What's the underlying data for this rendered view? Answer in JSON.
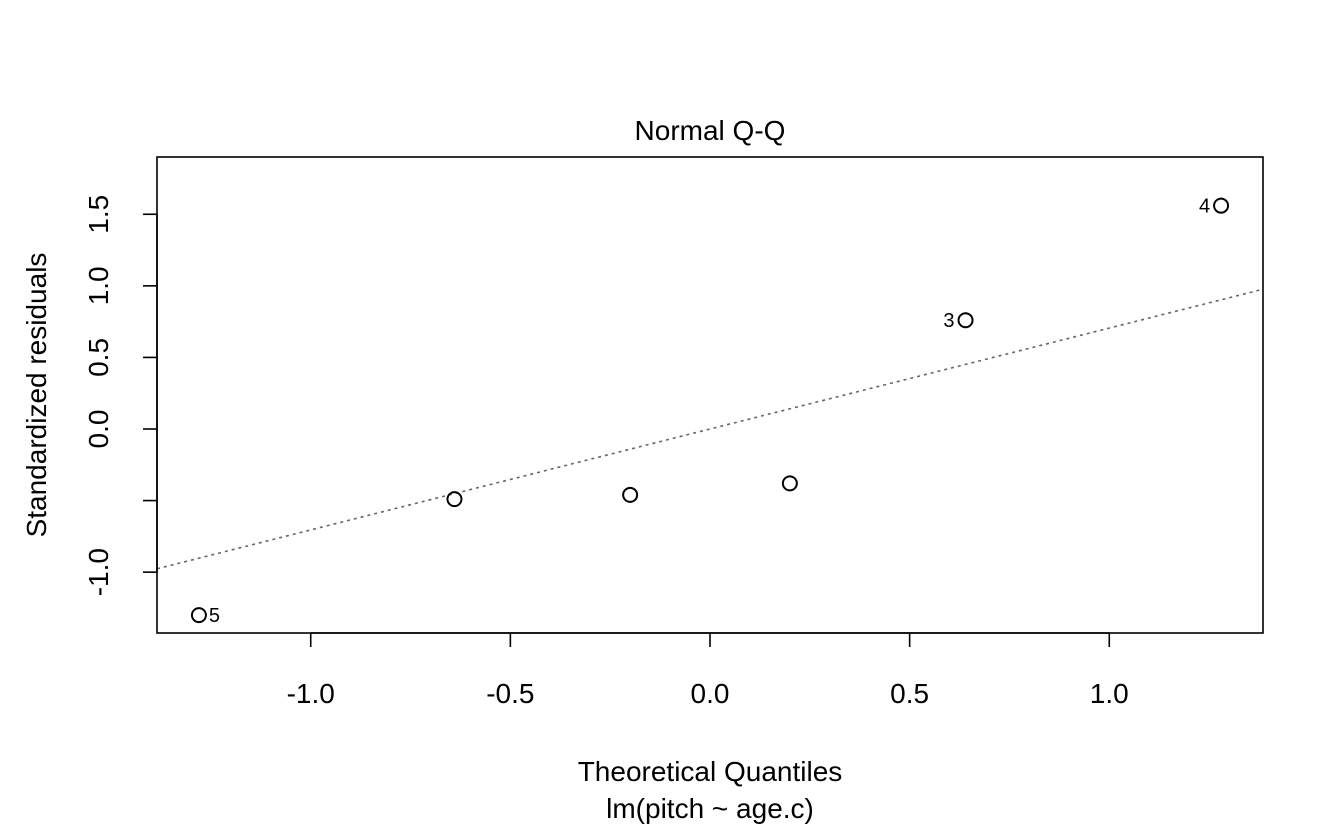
{
  "chart_data": {
    "type": "scatter",
    "title": "Normal Q-Q",
    "xlabel": "Theoretical Quantiles",
    "ylabel": "Standardized residuals",
    "subtitle": "lm(pitch ~ age.c)",
    "xlim": [
      -1.385,
      1.385
    ],
    "ylim": [
      -1.425,
      1.9
    ],
    "x_ticks": [
      -1.0,
      -0.5,
      0.0,
      0.5,
      1.0
    ],
    "x_tick_labels": [
      "-1.0",
      "-0.5",
      "0.0",
      "0.5",
      "1.0"
    ],
    "y_ticks": [
      -1.0,
      -0.5,
      0.0,
      0.5,
      1.0,
      1.5
    ],
    "y_tick_labels": [
      "-1.0",
      "",
      "0.0",
      "0.5",
      "1.0",
      "1.5"
    ],
    "points": [
      {
        "x": -1.28,
        "y": -1.3,
        "label": "5",
        "label_side": "right"
      },
      {
        "x": -0.64,
        "y": -0.49,
        "label": "",
        "label_side": ""
      },
      {
        "x": -0.2,
        "y": -0.46,
        "label": "",
        "label_side": ""
      },
      {
        "x": 0.2,
        "y": -0.38,
        "label": "",
        "label_side": ""
      },
      {
        "x": 0.64,
        "y": 0.76,
        "label": "3",
        "label_side": "left"
      },
      {
        "x": 1.28,
        "y": 1.56,
        "label": "4",
        "label_side": "left"
      }
    ],
    "reference_line": {
      "intercept": 0.0,
      "slope": 0.705,
      "style": "dotted",
      "color": "#666666"
    },
    "grid": false,
    "legend": "none"
  }
}
